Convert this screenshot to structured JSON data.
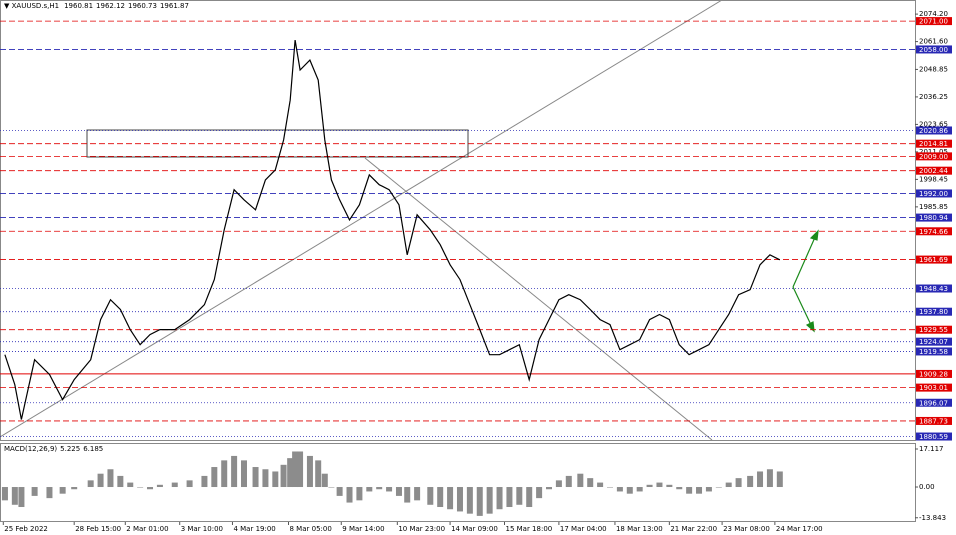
{
  "chart_data": [
    {
      "type": "line",
      "title": "XAUUSD.s,H1",
      "ohlc": [
        1960.81,
        1962.12,
        1960.73,
        1961.87
      ],
      "x": [
        3,
        9,
        13,
        21,
        30,
        38,
        45,
        55,
        61,
        67,
        73,
        79,
        85,
        91,
        97,
        106,
        115,
        124,
        130,
        136,
        142,
        148,
        155,
        161,
        167,
        172,
        176,
        179,
        182,
        188,
        193,
        197,
        201,
        206,
        212,
        218,
        224,
        230,
        236,
        242,
        247,
        253,
        261,
        267,
        273,
        279,
        285,
        291,
        297,
        303,
        309,
        315,
        321,
        327,
        333,
        339,
        345,
        352,
        358,
        364,
        370,
        376,
        382,
        388,
        394,
        400,
        406,
        412,
        418,
        424,
        430,
        436,
        442,
        448,
        455,
        461,
        467,
        473
      ],
      "values": [
        1918.1,
        1904.4,
        1888.4,
        1915.8,
        1909.0,
        1897.5,
        1906.7,
        1915.8,
        1934.2,
        1943.3,
        1938.8,
        1929.6,
        1922.7,
        1927.3,
        1929.6,
        1929.6,
        1934.2,
        1941.0,
        1952.5,
        1975.3,
        1993.7,
        1989.1,
        1984.5,
        1998.2,
        2002.8,
        2016.5,
        2034.8,
        2062.3,
        2048.6,
        2053.1,
        2044.0,
        2016.5,
        1998.2,
        1989.1,
        1979.9,
        1986.8,
        2000.5,
        1996.0,
        1993.7,
        1986.8,
        1963.9,
        1982.2,
        1975.3,
        1968.5,
        1959.3,
        1952.5,
        1941.0,
        1929.6,
        1918.1,
        1918.1,
        1920.4,
        1922.7,
        1906.7,
        1925.0,
        1934.2,
        1943.3,
        1945.6,
        1943.3,
        1938.8,
        1934.2,
        1931.9,
        1920.4,
        1922.7,
        1925.0,
        1934.2,
        1936.5,
        1934.2,
        1922.7,
        1918.1,
        1920.4,
        1922.7,
        1929.6,
        1936.5,
        1945.6,
        1947.9,
        1959.3,
        1963.9,
        1961.6
      ],
      "color": "#000000",
      "xlim": [
        0,
        555
      ],
      "xticks": [
        {
          "value": 2,
          "label": "25 Feb 2022"
        },
        {
          "value": 45,
          "label": "28 Feb 15:00"
        },
        {
          "value": 76,
          "label": "2 Mar 01:00"
        },
        {
          "value": 109,
          "label": "3 Mar 10:00"
        },
        {
          "value": 141,
          "label": "4 Mar 19:00"
        },
        {
          "value": 175,
          "label": "8 Mar 05:00"
        },
        {
          "value": 207,
          "label": "9 Mar 14:00"
        },
        {
          "value": 241,
          "label": "10 Mar 23:00"
        },
        {
          "value": 273,
          "label": "14 Mar 09:00"
        },
        {
          "value": 306,
          "label": "15 Mar 18:00"
        },
        {
          "value": 339,
          "label": "17 Mar 04:00"
        },
        {
          "value": 373,
          "label": "18 Mar 13:00"
        },
        {
          "value": 406,
          "label": "21 Mar 22:00"
        },
        {
          "value": 438,
          "label": "23 Mar 08:00"
        },
        {
          "value": 470,
          "label": "24 Mar 17:00"
        }
      ],
      "ylim": [
        1879,
        2077
      ],
      "yticks": [
        {
          "value": 2074.2,
          "label": "2074.20"
        },
        {
          "value": 2061.6,
          "label": "2061.60"
        },
        2048.85,
        2036.25,
        2023.65,
        2011.05,
        1998.45,
        1985.85
      ],
      "levels": {
        "values": [
          2071,
          2058,
          2020.86,
          2014.81,
          2009,
          2002.44,
          1992,
          1980.94,
          1974.66,
          1961.69,
          1948.43,
          1937.8,
          1929.55,
          1924.07,
          1919.58,
          1909.28,
          1903.01,
          1896.07,
          1887.73,
          1880.59
        ],
        "value_labels": [
          "2071.00",
          "2058.00",
          "2020.86",
          "2014.81",
          "2009.00",
          "2002.44",
          "1992.00",
          "1980.94",
          "1974.66",
          "1961.69",
          "1948.43",
          "1937.80",
          "1929.55",
          "1924.07",
          "1919.58",
          "1909.28",
          "1903.01",
          "1896.07",
          "1887.73",
          "1880.59"
        ],
        "colors": [
          "#e00000",
          "#2828b4",
          "#2828b4",
          "#e00000",
          "#e00000",
          "#e00000",
          "#2828b4",
          "#2828b4",
          "#e00000",
          "#e00000",
          "#2828b4",
          "#2828b4",
          "#e00000",
          "#2828b4",
          "#2828b4",
          "#e00000",
          "#e00000",
          "#2828b4",
          "#e00000",
          "#2828b4"
        ],
        "styles": [
          "dash",
          "dash",
          "dot",
          "dash",
          "dash",
          "dash",
          "dash",
          "dash",
          "dash",
          "dash",
          "dot",
          "dot",
          "dash",
          "dot",
          "dot",
          "solid",
          "dash",
          "dot",
          "dash",
          "dot"
        ]
      }
    },
    {
      "type": "bar",
      "title": "MACD(12,26,9)",
      "readings": [
        5.225,
        6.185
      ],
      "x": [
        3,
        9,
        13,
        21,
        30,
        38,
        45,
        55,
        61,
        67,
        73,
        79,
        85,
        91,
        97,
        106,
        115,
        124,
        130,
        136,
        142,
        148,
        155,
        161,
        167,
        172,
        176,
        179,
        182,
        188,
        193,
        197,
        201,
        206,
        212,
        218,
        224,
        230,
        236,
        242,
        247,
        253,
        261,
        267,
        273,
        279,
        285,
        291,
        297,
        303,
        309,
        315,
        321,
        327,
        333,
        339,
        345,
        352,
        358,
        364,
        370,
        376,
        382,
        388,
        394,
        400,
        406,
        412,
        418,
        424,
        430,
        436,
        442,
        448,
        455,
        461,
        467,
        473
      ],
      "values": [
        -6,
        -8,
        -9,
        -4,
        -5,
        -3,
        -1,
        3,
        6,
        8,
        5,
        2,
        0,
        -1,
        1,
        2,
        3,
        5,
        9,
        12,
        14,
        12,
        9,
        8,
        7,
        10,
        13,
        16,
        16,
        14,
        12,
        6,
        0,
        -4,
        -7,
        -6,
        -2,
        -1,
        -2,
        -4,
        -7,
        -6,
        -8,
        -9,
        -10,
        -11,
        -12,
        -13,
        -12,
        -10,
        -9,
        -8,
        -9,
        -5,
        -1,
        3,
        5,
        6,
        4,
        2,
        0,
        -2,
        -3,
        -2,
        1,
        2,
        1,
        -1,
        -3,
        -3,
        -2,
        0,
        2,
        4,
        5,
        7,
        8,
        7
      ],
      "color": "#8c8c8c",
      "xlim": [
        0,
        555
      ],
      "ylim": [
        -15.3,
        19.82
      ],
      "yticks": [
        17.117,
        {
          "value": 0,
          "label": "0.00"
        },
        -13.843
      ]
    }
  ]
}
